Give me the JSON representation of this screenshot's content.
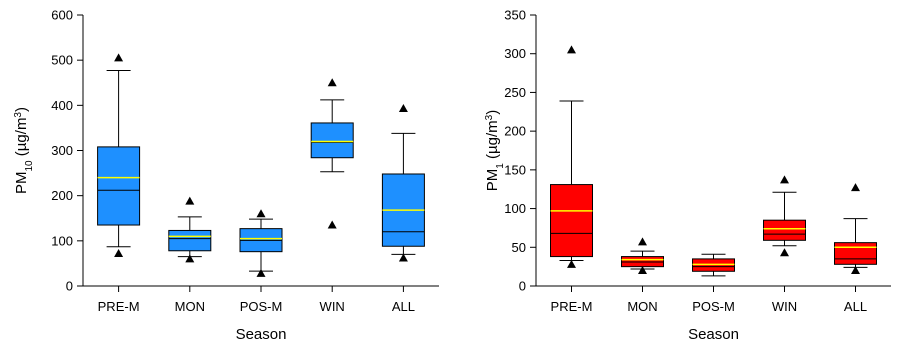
{
  "chart_data": [
    {
      "type": "box",
      "xlabel": "Season",
      "ylabel": "PM10 (µg/m3)",
      "ylabel_parts": {
        "main": "PM",
        "sub": "10",
        "open": " (µg/m",
        "sup": "3",
        "close": ")"
      },
      "ylim": [
        0,
        600
      ],
      "yticks": [
        0,
        100,
        200,
        300,
        400,
        500,
        600
      ],
      "categories": [
        "PRE-M",
        "MON",
        "POS-M",
        "WIN",
        "ALL"
      ],
      "box_color": "#1e90ff",
      "mean_color": "#ffff00",
      "grid": false,
      "boxes": [
        {
          "category": "PRE-M",
          "min_outlier": 72,
          "whisker_low": 87,
          "q1": 135,
          "median": 212,
          "mean": 240,
          "q3": 308,
          "whisker_high": 477,
          "max_outlier": 505
        },
        {
          "category": "MON",
          "min_outlier": 60,
          "whisker_low": 65,
          "q1": 78,
          "median": 105,
          "mean": 110,
          "q3": 123,
          "whisker_high": 153,
          "max_outlier": 188
        },
        {
          "category": "POS-M",
          "min_outlier": 28,
          "whisker_low": 33,
          "q1": 76,
          "median": 101,
          "mean": 105,
          "q3": 127,
          "whisker_high": 148,
          "max_outlier": 160
        },
        {
          "category": "WIN",
          "min_outlier": 135,
          "whisker_low": 253,
          "q1": 284,
          "median": 318,
          "mean": 320,
          "q3": 361,
          "whisker_high": 412,
          "max_outlier": 450
        },
        {
          "category": "ALL",
          "min_outlier": 62,
          "whisker_low": 70,
          "q1": 88,
          "median": 120,
          "mean": 168,
          "q3": 248,
          "whisker_high": 338,
          "max_outlier": 393
        }
      ]
    },
    {
      "type": "box",
      "xlabel": "Season",
      "ylabel": "PM1 (µg/m3)",
      "ylabel_parts": {
        "main": "PM",
        "sub": "1",
        "open": " (µg/m",
        "sup": "3",
        "close": ")"
      },
      "ylim": [
        0,
        350
      ],
      "yticks": [
        0,
        50,
        100,
        150,
        200,
        250,
        300,
        350
      ],
      "categories": [
        "PRE-M",
        "MON",
        "POS-M",
        "WIN",
        "ALL"
      ],
      "box_color": "#ff0000",
      "mean_color": "#ffff00",
      "grid": false,
      "boxes": [
        {
          "category": "PRE-M",
          "min_outlier": 28,
          "whisker_low": 33,
          "q1": 38,
          "median": 68,
          "mean": 97,
          "q3": 131,
          "whisker_high": 239,
          "max_outlier": 305
        },
        {
          "category": "MON",
          "min_outlier": 20,
          "whisker_low": 22,
          "q1": 25,
          "median": 31,
          "mean": 34,
          "q3": 38,
          "whisker_high": 45,
          "max_outlier": 57
        },
        {
          "category": "POS-M",
          "min_outlier": null,
          "whisker_low": 13,
          "q1": 19,
          "median": 25,
          "mean": 28,
          "q3": 35,
          "whisker_high": 41,
          "max_outlier": null
        },
        {
          "category": "WIN",
          "min_outlier": 43,
          "whisker_low": 52,
          "q1": 59,
          "median": 67,
          "mean": 74,
          "q3": 85,
          "whisker_high": 121,
          "max_outlier": 137
        },
        {
          "category": "ALL",
          "min_outlier": 20,
          "whisker_low": 24,
          "q1": 28,
          "median": 35,
          "mean": 50,
          "q3": 56,
          "whisker_high": 87,
          "max_outlier": 127
        }
      ]
    }
  ]
}
